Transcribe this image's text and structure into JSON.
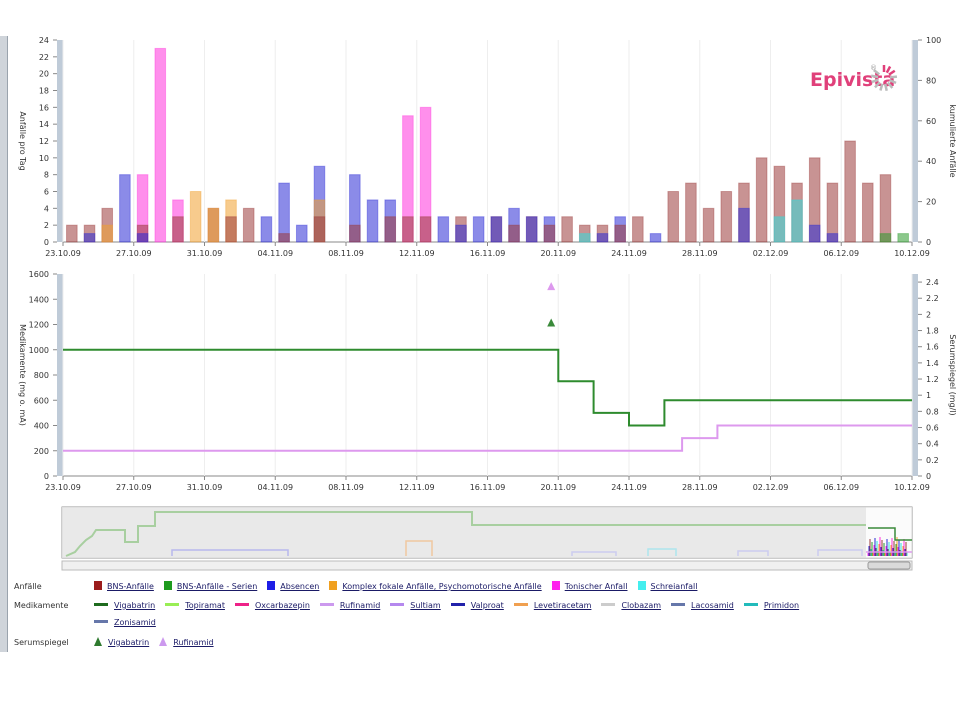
{
  "logo": {
    "text": "Epivista",
    "mark": "®"
  },
  "chart_data": [
    {
      "type": "bar",
      "ylabel": "Anfälle pro Tag",
      "y2label": "kumulierte Anfälle",
      "ylim": [
        0,
        24
      ],
      "y2lim": [
        0,
        100
      ],
      "y_ticks": [
        0,
        2,
        4,
        6,
        8,
        10,
        12,
        14,
        16,
        18,
        20,
        22,
        24
      ],
      "y2_ticks": [
        0,
        20,
        40,
        60,
        80,
        100
      ],
      "x_ticks": [
        "23.10.09",
        "27.10.09",
        "31.10.09",
        "04.11.09",
        "08.11.09",
        "12.11.09",
        "16.11.09",
        "20.11.09",
        "24.11.09",
        "28.11.09",
        "02.12.09",
        "06.12.09",
        "10.12.09"
      ],
      "stacked": false,
      "series": [
        {
          "name": "BNS-Anfälle",
          "color": "#9b3a3a",
          "values": [
            2,
            2,
            4,
            0,
            2,
            0,
            3,
            0,
            4,
            3,
            4,
            0,
            1,
            0,
            3,
            0,
            2,
            0,
            3,
            3,
            3,
            0,
            3,
            0,
            3,
            2,
            3,
            2,
            3,
            2,
            2,
            2,
            3,
            0,
            6,
            7,
            4,
            6,
            7,
            10,
            9,
            7,
            10,
            7,
            12,
            7,
            8,
            0,
            0,
            0,
            0,
            0,
            0,
            0,
            0,
            0,
            0,
            0,
            0,
            0,
            0,
            0,
            0,
            0,
            0
          ]
        },
        {
          "name": "BNS-Anfälle - Serien",
          "color": "#2e9b2e",
          "values": [
            0,
            0,
            0,
            0,
            0,
            0,
            0,
            0,
            0,
            0,
            0,
            0,
            0,
            0,
            0,
            0,
            0,
            0,
            0,
            0,
            0,
            0,
            0,
            0,
            0,
            0,
            0,
            0,
            0,
            0,
            0,
            0,
            0,
            0,
            0,
            0,
            0,
            0,
            0,
            0,
            0,
            0,
            0,
            0,
            0,
            0,
            1,
            1,
            0,
            0,
            0,
            0,
            0,
            0,
            0,
            0,
            0,
            0,
            0,
            0,
            0,
            0,
            0,
            0,
            0
          ]
        },
        {
          "name": "Absencen",
          "color": "#2b2bd6",
          "values": [
            0,
            1,
            0,
            8,
            1,
            0,
            0,
            0,
            0,
            0,
            0,
            3,
            7,
            2,
            9,
            0,
            8,
            5,
            5,
            0,
            0,
            3,
            2,
            3,
            3,
            4,
            3,
            3,
            0,
            0,
            1,
            3,
            0,
            1,
            0,
            0,
            0,
            0,
            4,
            0,
            0,
            0,
            2,
            1,
            0,
            0,
            0,
            0,
            0,
            0,
            0,
            0,
            0,
            0,
            0,
            0,
            0,
            0,
            0,
            0,
            0,
            0,
            0,
            0,
            0
          ]
        },
        {
          "name": "Komplex fokale Anfälle, Psychomotorische Anfälle",
          "color": "#f0a030",
          "values": [
            0,
            0,
            2,
            0,
            0,
            0,
            0,
            6,
            4,
            5,
            0,
            0,
            0,
            0,
            5,
            0,
            0,
            0,
            0,
            0,
            0,
            0,
            0,
            0,
            0,
            0,
            0,
            0,
            0,
            0,
            0,
            0,
            0,
            0,
            0,
            0,
            0,
            0,
            0,
            0,
            0,
            0,
            0,
            0,
            0,
            0,
            0,
            0,
            0,
            0,
            0,
            0,
            0,
            0,
            0,
            0,
            0,
            0,
            0,
            0,
            0,
            0,
            0,
            0,
            0
          ]
        },
        {
          "name": "Tonischer Anfall",
          "color": "#ff33dd",
          "values": [
            0,
            0,
            0,
            0,
            8,
            23,
            5,
            0,
            0,
            0,
            0,
            0,
            0,
            0,
            0,
            0,
            0,
            0,
            0,
            15,
            16,
            0,
            0,
            0,
            0,
            0,
            0,
            0,
            0,
            0,
            0,
            0,
            0,
            0,
            0,
            0,
            0,
            0,
            0,
            0,
            0,
            0,
            0,
            0,
            0,
            0,
            0,
            0,
            0,
            0,
            0,
            0,
            0,
            0,
            0,
            0,
            0,
            0,
            0,
            0,
            0,
            0,
            0,
            0,
            0
          ]
        },
        {
          "name": "Schreianfall",
          "color": "#33dddd",
          "values": [
            0,
            0,
            0,
            0,
            0,
            0,
            0,
            0,
            0,
            0,
            0,
            0,
            0,
            0,
            0,
            0,
            0,
            0,
            0,
            0,
            0,
            0,
            0,
            0,
            0,
            0,
            0,
            0,
            0,
            1,
            0,
            0,
            0,
            0,
            0,
            0,
            0,
            0,
            0,
            0,
            3,
            5,
            0,
            0,
            0,
            0,
            0,
            0,
            0,
            0,
            0,
            0,
            0,
            0,
            0,
            0,
            0,
            0,
            0,
            0,
            0,
            0,
            0,
            0,
            0
          ]
        }
      ]
    },
    {
      "type": "line",
      "ylabel": "Medikamente (mg o. mA)",
      "y2label": "Serumspiegel (mg/l)",
      "ylim": [
        0,
        1600
      ],
      "y2lim": [
        0,
        2.5
      ],
      "y_ticks": [
        0,
        200,
        400,
        600,
        800,
        1000,
        1200,
        1400,
        1600
      ],
      "y2_ticks": [
        "0",
        "0.2",
        "0.4",
        "0.6",
        "0.8",
        "1",
        "1.2",
        "1.4",
        "1.6",
        "1.8",
        "2",
        "2.2",
        "2.4"
      ],
      "x_ticks": [
        "23.10.09",
        "27.10.09",
        "31.10.09",
        "04.11.09",
        "08.11.09",
        "12.11.09",
        "16.11.09",
        "20.11.09",
        "24.11.09",
        "28.11.09",
        "02.12.09",
        "06.12.09",
        "10.12.09"
      ],
      "series": [
        {
          "name": "Vigabatrin",
          "color": "#2e8b2e",
          "steps": [
            [
              0,
              1000
            ],
            [
              28,
              1000
            ],
            [
              28,
              750
            ],
            [
              30,
              750
            ],
            [
              30,
              500
            ],
            [
              32,
              500
            ],
            [
              32,
              400
            ],
            [
              34,
              400
            ],
            [
              34,
              600
            ],
            [
              48,
              600
            ]
          ]
        },
        {
          "name": "Rufinamid",
          "color": "#dd99ee",
          "steps": [
            [
              0,
              200
            ],
            [
              35,
              200
            ],
            [
              35,
              300
            ],
            [
              37,
              300
            ],
            [
              37,
              400
            ],
            [
              48,
              400
            ]
          ]
        }
      ],
      "serum": [
        {
          "name": "Vigabatrin",
          "color": "#3a8a3a",
          "x": 27.6,
          "y": 1.9
        },
        {
          "name": "Rufinamid",
          "color": "#dd99ee",
          "x": 27.6,
          "y": 2.35
        }
      ]
    }
  ],
  "legend": {
    "groups": [
      {
        "title": "Anfälle",
        "kind": "box",
        "items": [
          {
            "label": "BNS-Anfälle",
            "color": "#9b1c1c"
          },
          {
            "label": "BNS-Anfälle - Serien",
            "color": "#1e9b1e"
          },
          {
            "label": "Absencen",
            "color": "#1e1ee6"
          },
          {
            "label": "Komplex fokale Anfälle, Psychomotorische Anfälle",
            "color": "#f0a020"
          },
          {
            "label": "Tonischer Anfall",
            "color": "#ff22ee"
          },
          {
            "label": "Schreianfall",
            "color": "#44eeee"
          }
        ]
      },
      {
        "title": "Medikamente",
        "kind": "line",
        "items": [
          {
            "label": "Vigabatrin",
            "color": "#1e6b1e"
          },
          {
            "label": "Topiramat",
            "color": "#99ee55"
          },
          {
            "label": "Oxcarbazepin",
            "color": "#ee2288"
          },
          {
            "label": "Rufinamid",
            "color": "#cc99ee"
          },
          {
            "label": "Sultiam",
            "color": "#b588ee"
          },
          {
            "label": "Valproat",
            "color": "#2222aa"
          },
          {
            "label": "Levetiracetam",
            "color": "#f0a050"
          },
          {
            "label": "Clobazam",
            "color": "#cccccc"
          },
          {
            "label": "Lacosamid",
            "color": "#6677aa"
          },
          {
            "label": "Primidon",
            "color": "#22bbbb"
          },
          {
            "label": "Zonisamid",
            "color": "#6677aa"
          }
        ]
      },
      {
        "title": "Serumspiegel",
        "kind": "triangle",
        "items": [
          {
            "label": "Vigabatrin",
            "color": "#2e7a2e"
          },
          {
            "label": "Rufinamid",
            "color": "#cc99ee"
          }
        ]
      }
    ]
  }
}
